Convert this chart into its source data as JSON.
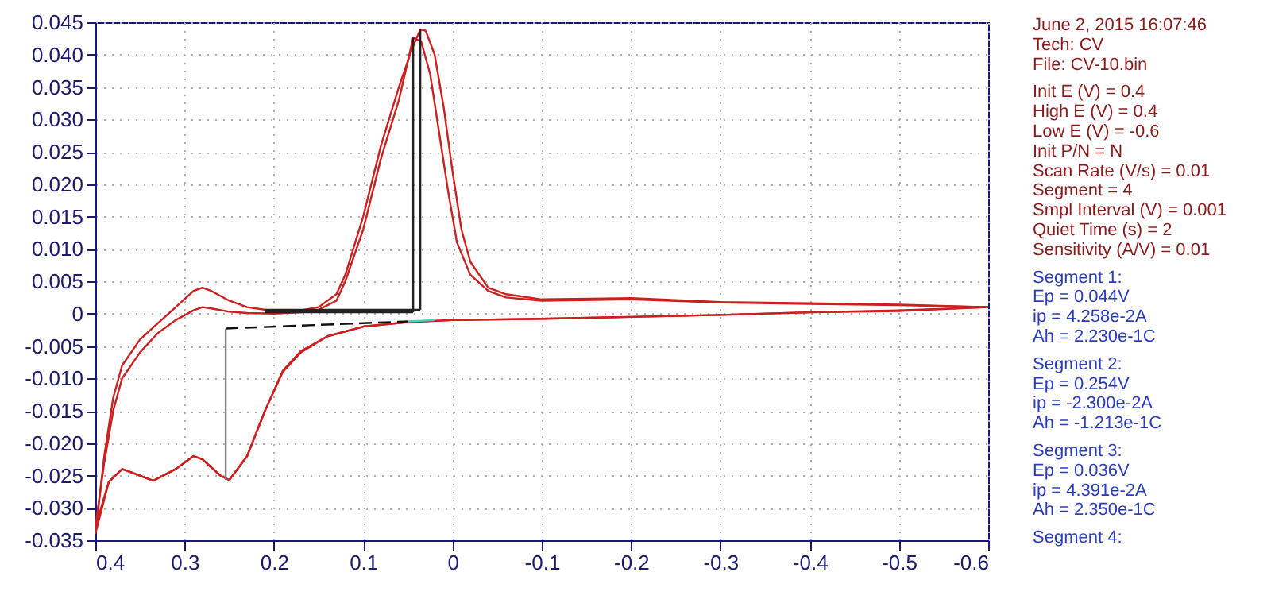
{
  "chart_data": {
    "type": "line",
    "xlim": [
      0.4,
      -0.6
    ],
    "xticks": [
      0.4,
      0.3,
      0.2,
      0.1,
      0,
      -0.1,
      -0.2,
      -0.3,
      -0.4,
      -0.5,
      -0.6
    ],
    "ylim": [
      -0.035,
      0.045
    ],
    "yticks": [
      {
        "value": 0.045,
        "label": "0.045"
      },
      {
        "value": 0.04,
        "label": "0.040"
      },
      {
        "value": 0.035,
        "label": "0.035"
      },
      {
        "value": 0.03,
        "label": "0.030"
      },
      {
        "value": 0.025,
        "label": "0.025"
      },
      {
        "value": 0.02,
        "label": "0.020"
      },
      {
        "value": 0.015,
        "label": "0.015"
      },
      {
        "value": 0.01,
        "label": "0.010"
      },
      {
        "value": 0.005,
        "label": "0.005"
      },
      0,
      {
        "value": -0.005,
        "label": "-0.005"
      },
      {
        "value": -0.01,
        "label": "-0.010"
      },
      {
        "value": -0.015,
        "label": "-0.015"
      },
      {
        "value": -0.02,
        "label": "-0.020"
      },
      {
        "value": -0.025,
        "label": "-0.025"
      },
      {
        "value": -0.03,
        "label": "-0.030"
      },
      {
        "value": -0.035,
        "label": "-0.035"
      }
    ],
    "grid": true,
    "marker": "none",
    "series": [
      {
        "color": "#cc2020",
        "line_style": "solid",
        "x": [
          0.4,
          0.39,
          0.38,
          0.37,
          0.35,
          0.33,
          0.31,
          0.29,
          0.28,
          0.27,
          0.25,
          0.23,
          0.2,
          0.17,
          0.15,
          0.13,
          0.12,
          0.1,
          0.08,
          0.06,
          0.05,
          0.044,
          0.035,
          0.025,
          0.015,
          0.005,
          -0.005,
          -0.02,
          -0.04,
          -0.06,
          -0.1,
          -0.2,
          -0.3,
          -0.4,
          -0.5,
          -0.6
        ],
        "values": [
          -0.033,
          -0.023,
          -0.015,
          -0.01,
          -0.006,
          -0.003,
          -0.001,
          0.0005,
          0.001,
          0.0008,
          0.0003,
          0.0001,
          0.0,
          0.0002,
          0.0006,
          0.002,
          0.005,
          0.013,
          0.024,
          0.033,
          0.039,
          0.0426,
          0.042,
          0.037,
          0.028,
          0.019,
          0.011,
          0.006,
          0.0035,
          0.0025,
          0.002,
          0.0022,
          0.0017,
          0.0015,
          0.0013,
          0.001
        ]
      },
      {
        "color": "#cc2020",
        "line_style": "solid",
        "x": [
          -0.6,
          -0.5,
          -0.4,
          -0.3,
          -0.2,
          -0.1,
          0,
          0.05,
          0.1,
          0.14,
          0.17,
          0.19,
          0.21,
          0.23,
          0.25,
          0.26,
          0.28,
          0.29,
          0.31,
          0.335,
          0.36,
          0.37,
          0.385,
          0.4
        ],
        "values": [
          0.001,
          0.0004,
          0.0002,
          -0.0002,
          -0.0005,
          -0.0008,
          -0.001,
          -0.0013,
          -0.002,
          -0.0035,
          -0.0058,
          -0.0088,
          -0.015,
          -0.022,
          -0.0257,
          -0.025,
          -0.0225,
          -0.022,
          -0.024,
          -0.0258,
          -0.0245,
          -0.024,
          -0.026,
          -0.033
        ]
      },
      {
        "color": "#cc2020",
        "line_style": "solid",
        "x": [
          0.4,
          0.39,
          0.38,
          0.37,
          0.35,
          0.33,
          0.31,
          0.29,
          0.28,
          0.27,
          0.25,
          0.23,
          0.2,
          0.17,
          0.15,
          0.13,
          0.12,
          0.1,
          0.08,
          0.06,
          0.045,
          0.036,
          0.03,
          0.02,
          0.01,
          0,
          -0.01,
          -0.02,
          -0.04,
          -0.06,
          -0.1,
          -0.2,
          -0.3,
          -0.4,
          -0.5,
          -0.6
        ],
        "values": [
          -0.034,
          -0.022,
          -0.013,
          -0.008,
          -0.004,
          -0.0015,
          0.001,
          0.0035,
          0.004,
          0.0035,
          0.002,
          0.001,
          0.0004,
          0.0005,
          0.001,
          0.003,
          0.006,
          0.015,
          0.026,
          0.035,
          0.041,
          0.0439,
          0.0437,
          0.04,
          0.032,
          0.022,
          0.013,
          0.008,
          0.004,
          0.003,
          0.0022,
          0.0024,
          0.0018,
          0.0016,
          0.0014,
          0.001
        ]
      },
      {
        "color": "#cc2020",
        "line_style": "solid",
        "x": [
          -0.6,
          -0.5,
          -0.4,
          -0.3,
          -0.2,
          -0.1,
          0,
          0.05,
          0.1,
          0.14,
          0.17,
          0.19,
          0.21,
          0.23,
          0.25,
          0.26,
          0.28,
          0.29,
          0.31,
          0.335,
          0.36,
          0.37,
          0.385,
          0.4
        ],
        "values": [
          0.001,
          0.0005,
          0.0002,
          -0.0002,
          -0.0005,
          -0.0008,
          -0.001,
          -0.0013,
          -0.002,
          -0.0035,
          -0.006,
          -0.009,
          -0.015,
          -0.022,
          -0.0257,
          -0.025,
          -0.0225,
          -0.022,
          -0.024,
          -0.0258,
          -0.0245,
          -0.024,
          -0.026,
          -0.034
        ]
      },
      {
        "color": "#222222",
        "line_style": "solid",
        "x": [
          0.21,
          0.044
        ],
        "values": [
          0.0002,
          0.0002
        ]
      },
      {
        "color": "#222222",
        "line_style": "solid",
        "x": [
          0.044,
          0.044
        ],
        "values": [
          0.0002,
          0.0426
        ]
      },
      {
        "color": "#222222",
        "line_style": "solid",
        "x": [
          0.21,
          0.036
        ],
        "values": [
          0.0006,
          0.0006
        ]
      },
      {
        "color": "#222222",
        "line_style": "solid",
        "x": [
          0.036,
          0.036
        ],
        "values": [
          0.0006,
          0.0439
        ]
      },
      {
        "color": "#888888",
        "line_style": "solid",
        "x": [
          0.254,
          0.254
        ],
        "values": [
          -0.0023,
          -0.0257
        ]
      },
      {
        "color": "#111111",
        "line_style": "dashed",
        "x": [
          0.254,
          0.05
        ],
        "values": [
          -0.0023,
          -0.0012
        ]
      },
      {
        "color": "#40d0d0",
        "line_style": "solid",
        "x": [
          0.05,
          0.02
        ],
        "values": [
          -0.0012,
          -0.001
        ]
      }
    ],
    "annotations": [
      "June 2, 2015   16:07:46",
      "Tech: CV",
      "File: CV-10.bin",
      "Init E (V) = 0.4",
      "High E (V) = 0.4",
      "Low E (V) = -0.6",
      "Init P/N = N",
      "Scan Rate (V/s) = 0.01",
      "Segment = 4",
      "Smpl Interval (V) = 0.001",
      "Quiet Time (s) = 2",
      "Sensitivity (A/V) = 0.01",
      "Segment 1:",
      "Ep = 0.044V",
      "ip = 4.258e-2A",
      "Ah = 2.230e-1C",
      "Segment 2:",
      "Ep = 0.254V",
      "ip = -2.300e-2A",
      "Ah = -1.213e-1C",
      "Segment 3:",
      "Ep = 0.036V",
      "ip = 4.391e-2A",
      "Ah = 2.350e-1C",
      "Segment 4:"
    ]
  }
}
